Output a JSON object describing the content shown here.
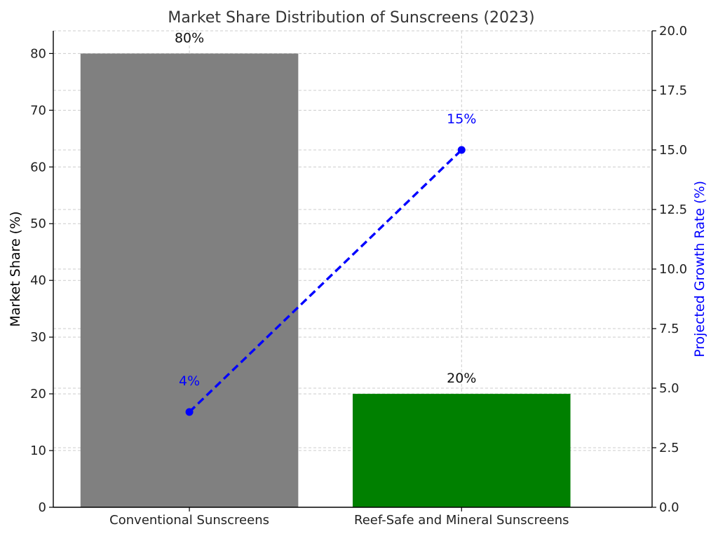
{
  "chart_data": {
    "type": "bar",
    "title": "Market Share Distribution of Sunscreens (2023)",
    "categories": [
      "Conventional Sunscreens",
      "Reef-Safe and Mineral Sunscreens"
    ],
    "bars": {
      "name": "Market Share",
      "values": [
        80,
        20
      ],
      "labels": [
        "80%",
        "20%"
      ],
      "colors": [
        "#808080",
        "#008000"
      ],
      "ylabel": "Market Share (%)",
      "ylim": [
        0,
        84
      ],
      "ticks": [
        "0",
        "10",
        "20",
        "30",
        "40",
        "50",
        "60",
        "70",
        "80"
      ]
    },
    "line": {
      "name": "Projected Growth Rate",
      "values": [
        4,
        15
      ],
      "labels": [
        "4%",
        "15%"
      ],
      "color": "#0000ff",
      "style": "dashed",
      "marker": "circle",
      "ylabel": "Projected Growth Rate (%)",
      "ylim": [
        0,
        20
      ],
      "ticks": [
        "0.0",
        "2.5",
        "5.0",
        "7.5",
        "10.0",
        "12.5",
        "15.0",
        "17.5",
        "20.0"
      ]
    },
    "grid": true
  }
}
